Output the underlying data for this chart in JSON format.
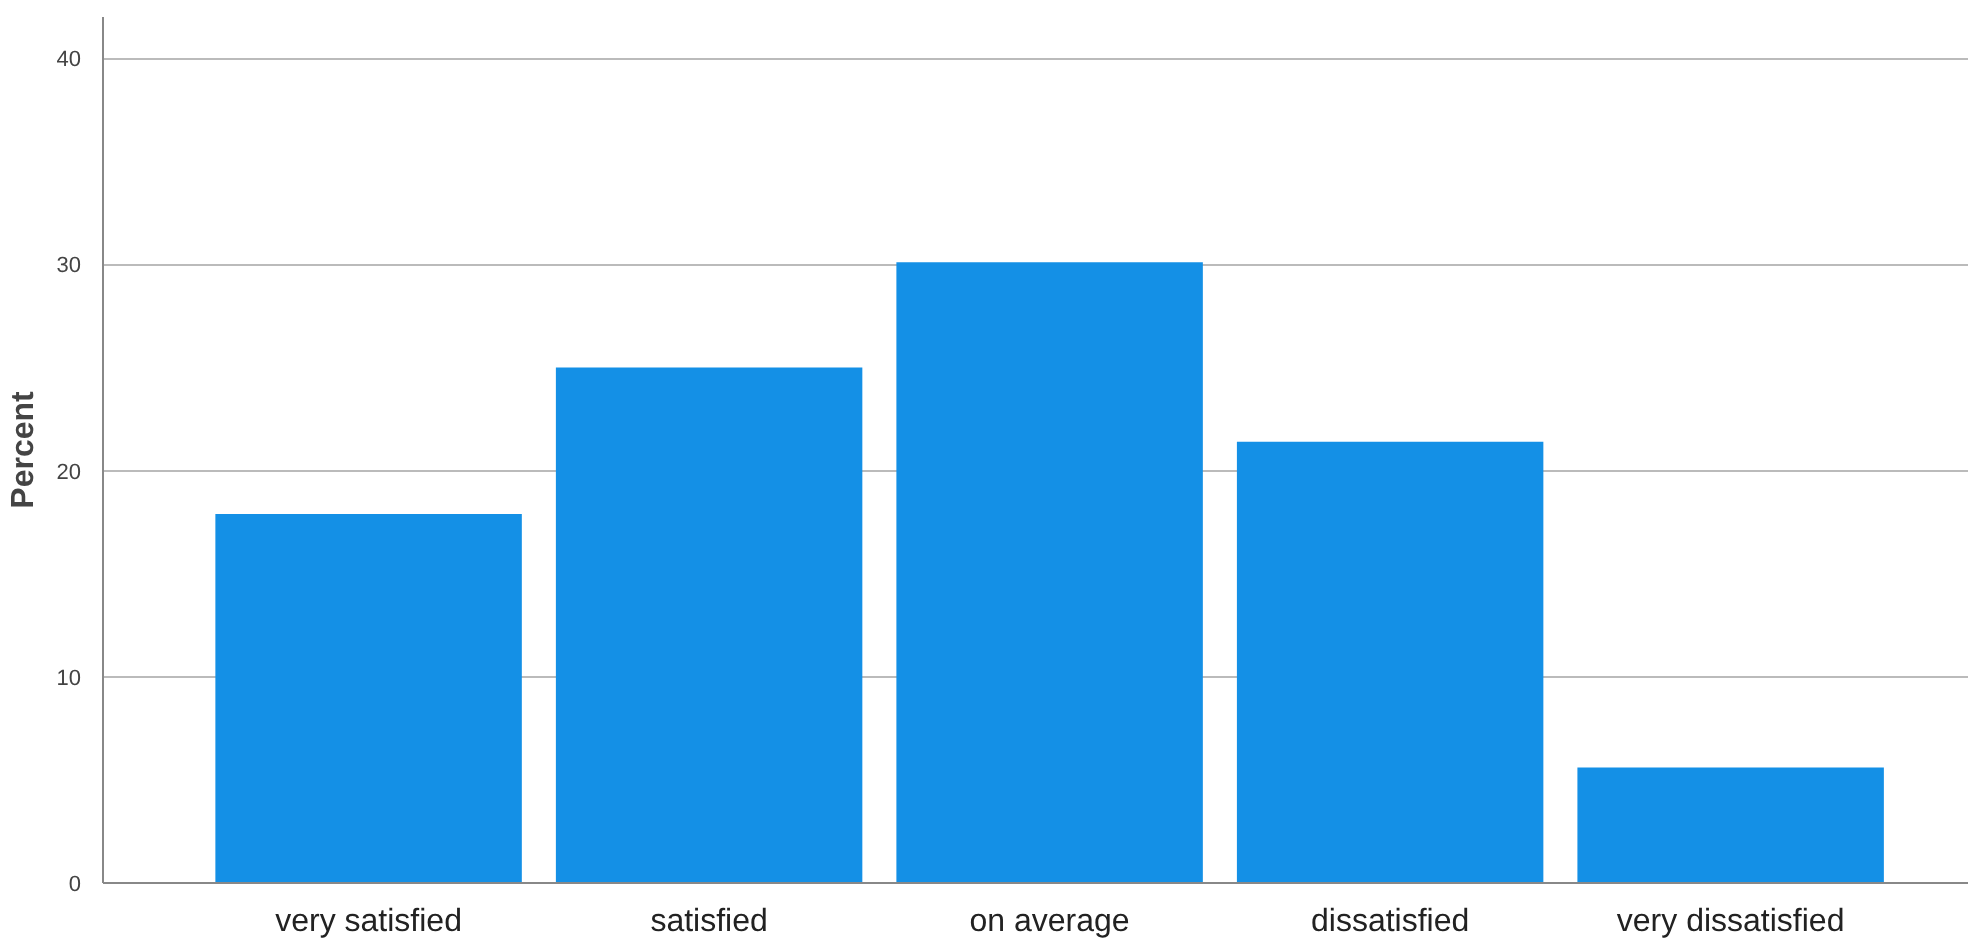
{
  "chart_data": {
    "type": "bar",
    "ylabel": "Percent",
    "categories": [
      "very satisfied",
      "satisfied",
      "on average",
      "dissatisfied",
      "very dissatisfied"
    ],
    "values": [
      17.9,
      25.0,
      30.1,
      21.4,
      5.6
    ],
    "color": "#1490e6",
    "ylim": [
      0,
      42
    ],
    "yticks": [
      0,
      10,
      20,
      30,
      40
    ],
    "grid": "y"
  }
}
